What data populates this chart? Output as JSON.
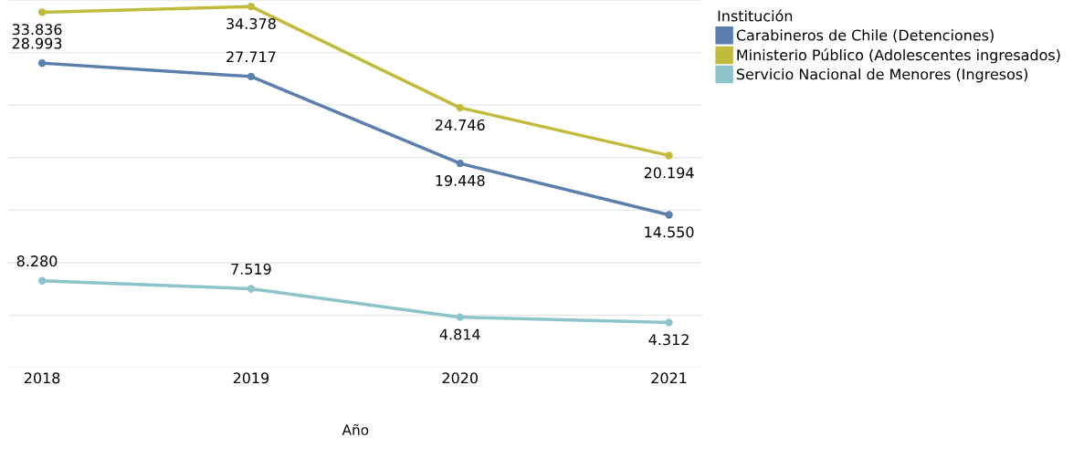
{
  "chart_data": {
    "type": "line",
    "xlabel": "Año",
    "legend_title": "Institución",
    "categories": [
      "2018",
      "2019",
      "2020",
      "2021"
    ],
    "series": [
      {
        "name": "Carabineros de Chile (Detenciones)",
        "color": "#5b7fad",
        "values": [
          28993,
          27717,
          19448,
          14550
        ],
        "value_labels": [
          "28.993",
          "27.717",
          "19.448",
          "14.550"
        ]
      },
      {
        "name": "Ministerio Público (Adolescentes ingresados)",
        "color": "#c0bb3a",
        "values": [
          33836,
          34378,
          24746,
          20194
        ],
        "value_labels": [
          "33.836",
          "34.378",
          "24.746",
          "20.194"
        ]
      },
      {
        "name": "Servicio Nacional de Menores (Ingresos)",
        "color": "#8cc4c9",
        "values": [
          8280,
          7519,
          4814,
          4312
        ],
        "value_labels": [
          "8.280",
          "7.519",
          "4.814",
          "4.312"
        ]
      }
    ],
    "yticks": [
      {
        "value": 0,
        "label": null
      },
      {
        "value": 5000,
        "label": null
      },
      {
        "value": 10000,
        "label": null
      },
      {
        "value": 15000,
        "label": null
      },
      {
        "value": 20000,
        "label": null
      },
      {
        "value": 25000,
        "label": null
      },
      {
        "value": 30000,
        "label": null
      },
      {
        "value": 35000,
        "label": null
      }
    ],
    "tick_labels": "x",
    "grid": "y",
    "legend": "top right",
    "marker": "circle",
    "line_style": "solid"
  }
}
